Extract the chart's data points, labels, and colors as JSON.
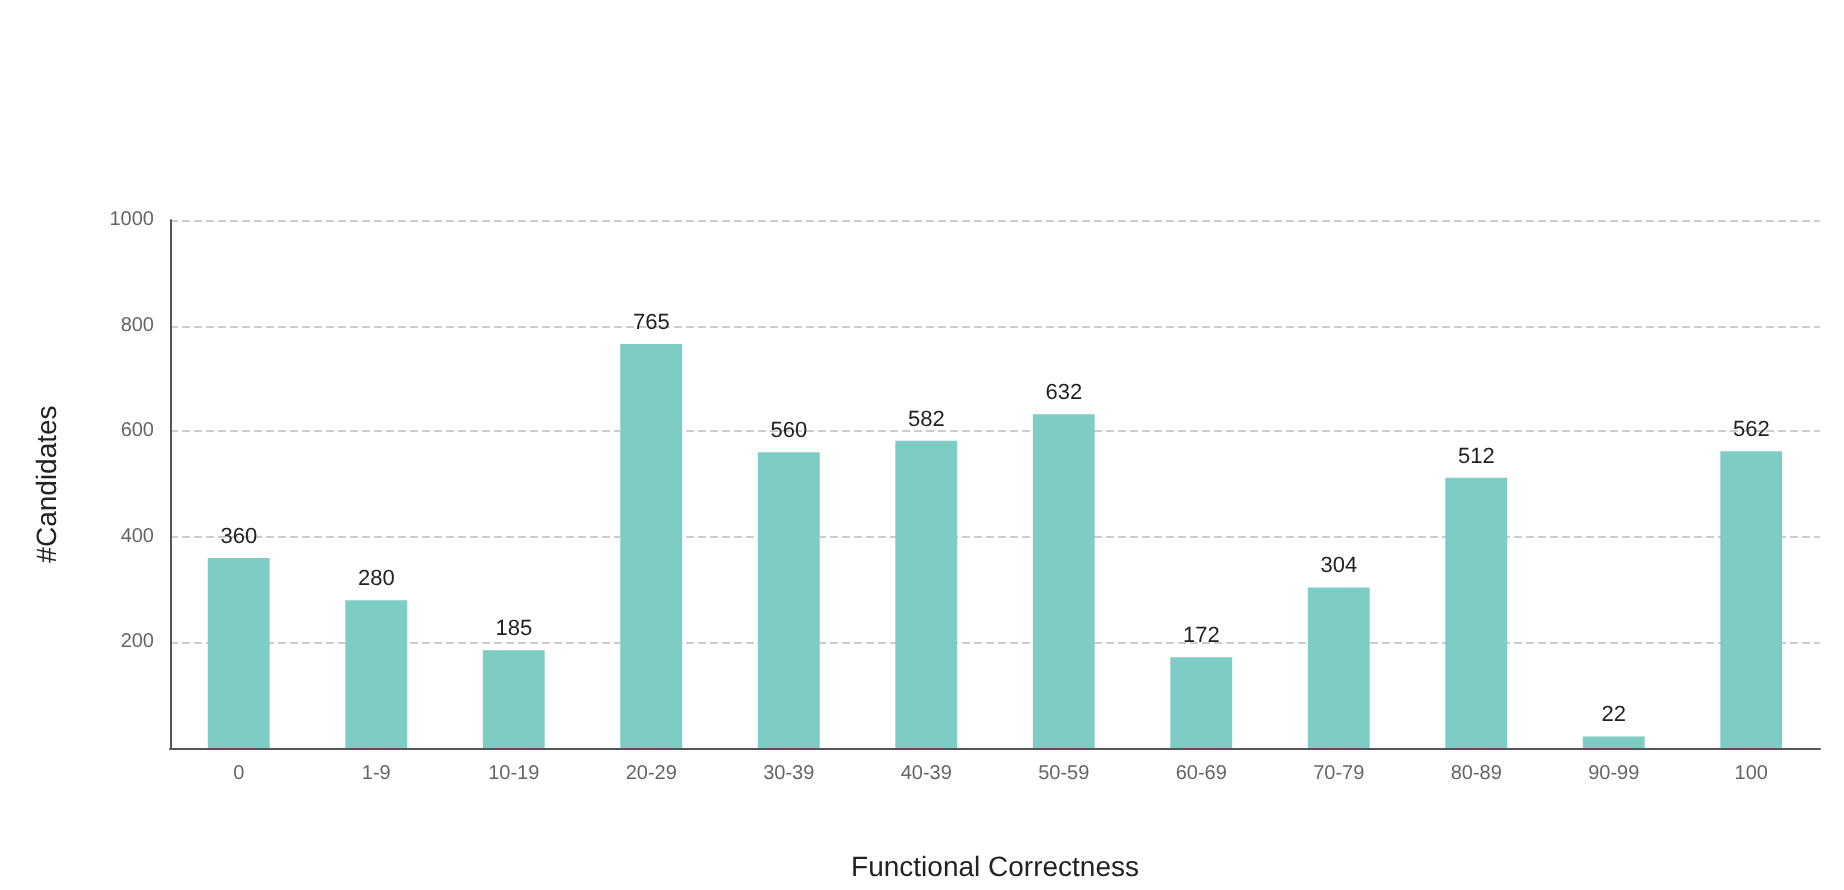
{
  "chart_data": {
    "type": "bar",
    "xlabel": "Functional Correctness",
    "ylabel": "#Candidates",
    "categories": [
      "0",
      "1-9",
      "10-19",
      "20-29",
      "30-39",
      "40-39",
      "50-59",
      "60-69",
      "70-79",
      "80-89",
      "90-99",
      "100"
    ],
    "values": [
      360,
      280,
      185,
      765,
      560,
      582,
      632,
      172,
      304,
      512,
      22,
      562
    ],
    "color": "#7ecdc5",
    "ylim": [
      0,
      1000
    ],
    "yticks": [
      200,
      400,
      600,
      800,
      1000
    ],
    "grid": "y",
    "data_labels": true
  }
}
